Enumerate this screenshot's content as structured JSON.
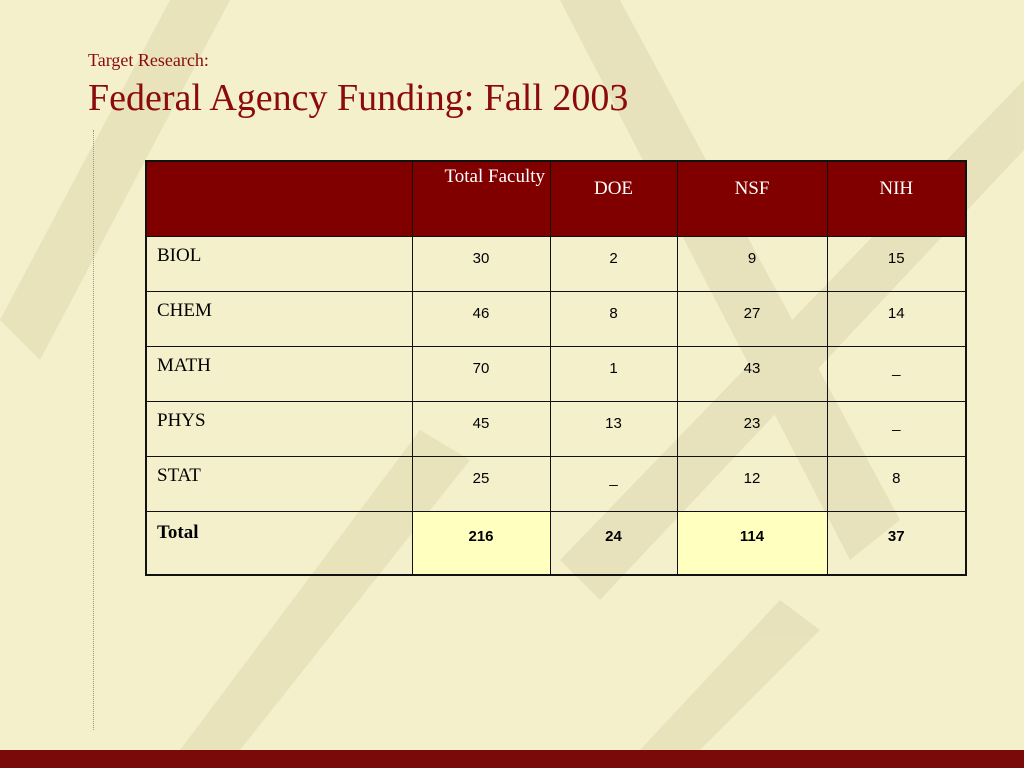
{
  "header": {
    "subtitle": "Target Research:",
    "title": "Federal Agency Funding: Fall 2003"
  },
  "table": {
    "columns": [
      "Total Faculty",
      "DOE",
      "NSF",
      "NIH"
    ],
    "rows": [
      [
        "BIOL",
        30,
        2,
        9,
        15
      ],
      [
        "CHEM",
        46,
        8,
        27,
        14
      ],
      [
        "MATH",
        70,
        1,
        43,
        "_"
      ],
      [
        "PHYS",
        45,
        13,
        23,
        "_"
      ],
      [
        "STAT",
        25,
        "_",
        12,
        8
      ]
    ],
    "total": [
      "Total",
      216,
      24,
      114,
      37
    ]
  }
}
